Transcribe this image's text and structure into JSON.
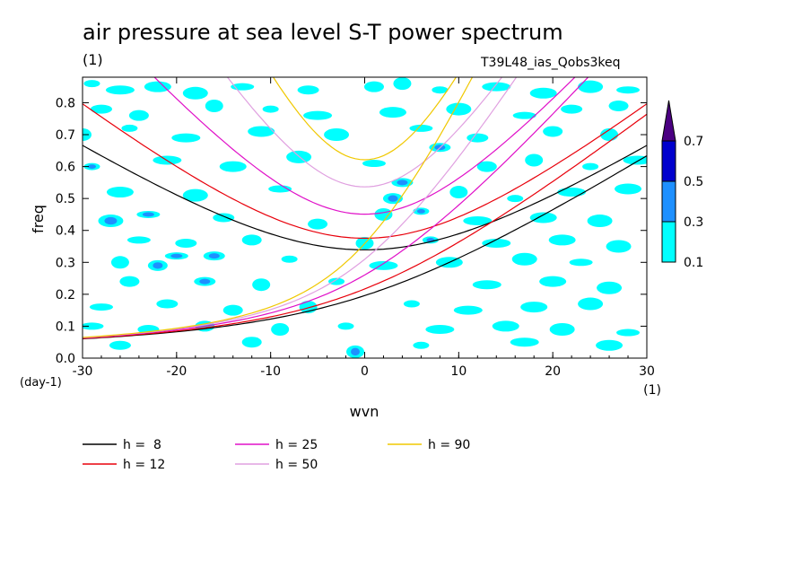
{
  "chart_data": {
    "type": "heatmap",
    "title": "air pressure at sea level S-T power spectrum",
    "title_units": "(1)",
    "subtitle": "T39L48_ias_Qobs3keq",
    "xlabel": "wvn",
    "xunits": "(1)",
    "ylabel": "freq",
    "yunits": "(day-1)",
    "xlim": [
      -30,
      30
    ],
    "ylim": [
      0.0,
      0.88
    ],
    "xticks": [
      -30,
      -20,
      -10,
      0,
      10,
      20,
      30
    ],
    "xtick_labels": [
      "-30",
      "-20",
      "-10",
      "0",
      "10",
      "20",
      "30"
    ],
    "yticks": [
      0.0,
      0.1,
      0.2,
      0.3,
      0.4,
      0.5,
      0.6,
      0.7,
      0.8
    ],
    "ytick_labels": [
      "0.0",
      "0.1",
      "0.2",
      "0.3",
      "0.4",
      "0.5",
      "0.6",
      "0.7",
      "0.8"
    ],
    "colorbar": {
      "levels": [
        0.1,
        0.3,
        0.5,
        0.7
      ],
      "labels": [
        "0.1",
        "0.3",
        "0.5",
        "0.7"
      ],
      "colors": [
        "#00ffff",
        "#1e90ff",
        "#0000cd",
        "#4b0082"
      ],
      "extend": "max"
    },
    "dispersion_curves": [
      {
        "name": "h =  8",
        "h": 8,
        "color": "#000000"
      },
      {
        "name": "h = 12",
        "h": 12,
        "color": "#e8000b"
      },
      {
        "name": "h = 25",
        "h": 25,
        "color": "#e010c8"
      },
      {
        "name": "h = 50",
        "h": 50,
        "color": "#e0a0e0"
      },
      {
        "name": "h = 90",
        "h": 90,
        "color": "#f0c800"
      }
    ],
    "legend_placement": "bottom",
    "grid": false,
    "blobs": [
      {
        "x": -29,
        "y": 0.86,
        "v": 0.15
      },
      {
        "x": -26,
        "y": 0.84,
        "v": 0.2
      },
      {
        "x": -22,
        "y": 0.85,
        "v": 0.15
      },
      {
        "x": -18,
        "y": 0.83,
        "v": 0.2
      },
      {
        "x": -13,
        "y": 0.85,
        "v": 0.15
      },
      {
        "x": -6,
        "y": 0.84,
        "v": 0.2
      },
      {
        "x": 1,
        "y": 0.85,
        "v": 0.15
      },
      {
        "x": 4,
        "y": 0.86,
        "v": 0.2
      },
      {
        "x": 8,
        "y": 0.84,
        "v": 0.15
      },
      {
        "x": 14,
        "y": 0.85,
        "v": 0.2
      },
      {
        "x": 19,
        "y": 0.83,
        "v": 0.15
      },
      {
        "x": 24,
        "y": 0.85,
        "v": 0.2
      },
      {
        "x": 28,
        "y": 0.84,
        "v": 0.15
      },
      {
        "x": -28,
        "y": 0.78,
        "v": 0.2
      },
      {
        "x": -24,
        "y": 0.76,
        "v": 0.15
      },
      {
        "x": -16,
        "y": 0.79,
        "v": 0.2
      },
      {
        "x": -10,
        "y": 0.78,
        "v": 0.2
      },
      {
        "x": -5,
        "y": 0.76,
        "v": 0.15
      },
      {
        "x": 3,
        "y": 0.77,
        "v": 0.2
      },
      {
        "x": 10,
        "y": 0.78,
        "v": 0.15
      },
      {
        "x": 17,
        "y": 0.76,
        "v": 0.2
      },
      {
        "x": 22,
        "y": 0.78,
        "v": 0.15
      },
      {
        "x": 27,
        "y": 0.79,
        "v": 0.2
      },
      {
        "x": -30,
        "y": 0.7,
        "v": 0.2
      },
      {
        "x": -25,
        "y": 0.72,
        "v": 0.2
      },
      {
        "x": -19,
        "y": 0.69,
        "v": 0.15
      },
      {
        "x": -11,
        "y": 0.71,
        "v": 0.2
      },
      {
        "x": -3,
        "y": 0.7,
        "v": 0.15
      },
      {
        "x": 6,
        "y": 0.72,
        "v": 0.2
      },
      {
        "x": 12,
        "y": 0.69,
        "v": 0.15
      },
      {
        "x": 20,
        "y": 0.71,
        "v": 0.2
      },
      {
        "x": 26,
        "y": 0.7,
        "v": 0.15
      },
      {
        "x": -29,
        "y": 0.6,
        "v": 0.35
      },
      {
        "x": -21,
        "y": 0.62,
        "v": 0.2
      },
      {
        "x": -14,
        "y": 0.6,
        "v": 0.15
      },
      {
        "x": -7,
        "y": 0.63,
        "v": 0.2
      },
      {
        "x": 1,
        "y": 0.61,
        "v": 0.2
      },
      {
        "x": 8,
        "y": 0.66,
        "v": 0.35
      },
      {
        "x": 13,
        "y": 0.6,
        "v": 0.2
      },
      {
        "x": 18,
        "y": 0.62,
        "v": 0.15
      },
      {
        "x": 24,
        "y": 0.6,
        "v": 0.2
      },
      {
        "x": 29,
        "y": 0.62,
        "v": 0.15
      },
      {
        "x": -26,
        "y": 0.52,
        "v": 0.2
      },
      {
        "x": -18,
        "y": 0.51,
        "v": 0.15
      },
      {
        "x": -9,
        "y": 0.53,
        "v": 0.2
      },
      {
        "x": 4,
        "y": 0.55,
        "v": 0.35
      },
      {
        "x": 3,
        "y": 0.5,
        "v": 0.4
      },
      {
        "x": 10,
        "y": 0.52,
        "v": 0.2
      },
      {
        "x": 16,
        "y": 0.5,
        "v": 0.15
      },
      {
        "x": 22,
        "y": 0.52,
        "v": 0.2
      },
      {
        "x": 28,
        "y": 0.53,
        "v": 0.15
      },
      {
        "x": -27,
        "y": 0.43,
        "v": 0.45
      },
      {
        "x": -23,
        "y": 0.45,
        "v": 0.3
      },
      {
        "x": -15,
        "y": 0.44,
        "v": 0.2
      },
      {
        "x": -5,
        "y": 0.42,
        "v": 0.15
      },
      {
        "x": 2,
        "y": 0.45,
        "v": 0.2
      },
      {
        "x": 6,
        "y": 0.46,
        "v": 0.4
      },
      {
        "x": 12,
        "y": 0.43,
        "v": 0.2
      },
      {
        "x": 19,
        "y": 0.44,
        "v": 0.15
      },
      {
        "x": 25,
        "y": 0.43,
        "v": 0.2
      },
      {
        "x": -24,
        "y": 0.37,
        "v": 0.2
      },
      {
        "x": -19,
        "y": 0.36,
        "v": 0.15
      },
      {
        "x": -12,
        "y": 0.37,
        "v": 0.2
      },
      {
        "x": 0,
        "y": 0.36,
        "v": 0.2
      },
      {
        "x": 7,
        "y": 0.37,
        "v": 0.35
      },
      {
        "x": 14,
        "y": 0.36,
        "v": 0.2
      },
      {
        "x": 21,
        "y": 0.37,
        "v": 0.15
      },
      {
        "x": 27,
        "y": 0.35,
        "v": 0.2
      },
      {
        "x": -20,
        "y": 0.32,
        "v": 0.4
      },
      {
        "x": -16,
        "y": 0.32,
        "v": 0.45
      },
      {
        "x": -22,
        "y": 0.29,
        "v": 0.35
      },
      {
        "x": -26,
        "y": 0.3,
        "v": 0.2
      },
      {
        "x": -8,
        "y": 0.31,
        "v": 0.15
      },
      {
        "x": 2,
        "y": 0.29,
        "v": 0.2
      },
      {
        "x": 9,
        "y": 0.3,
        "v": 0.2
      },
      {
        "x": 17,
        "y": 0.31,
        "v": 0.15
      },
      {
        "x": 23,
        "y": 0.3,
        "v": 0.2
      },
      {
        "x": -17,
        "y": 0.24,
        "v": 0.35
      },
      {
        "x": -25,
        "y": 0.24,
        "v": 0.2
      },
      {
        "x": -11,
        "y": 0.23,
        "v": 0.15
      },
      {
        "x": -3,
        "y": 0.24,
        "v": 0.2
      },
      {
        "x": 13,
        "y": 0.23,
        "v": 0.15
      },
      {
        "x": 20,
        "y": 0.24,
        "v": 0.2
      },
      {
        "x": 26,
        "y": 0.22,
        "v": 0.15
      },
      {
        "x": -28,
        "y": 0.16,
        "v": 0.2
      },
      {
        "x": -21,
        "y": 0.17,
        "v": 0.15
      },
      {
        "x": -14,
        "y": 0.15,
        "v": 0.2
      },
      {
        "x": -6,
        "y": 0.16,
        "v": 0.15
      },
      {
        "x": 5,
        "y": 0.17,
        "v": 0.2
      },
      {
        "x": 11,
        "y": 0.15,
        "v": 0.15
      },
      {
        "x": 18,
        "y": 0.16,
        "v": 0.2
      },
      {
        "x": 24,
        "y": 0.17,
        "v": 0.15
      },
      {
        "x": -29,
        "y": 0.1,
        "v": 0.2
      },
      {
        "x": -23,
        "y": 0.09,
        "v": 0.2
      },
      {
        "x": -17,
        "y": 0.1,
        "v": 0.15
      },
      {
        "x": -9,
        "y": 0.09,
        "v": 0.2
      },
      {
        "x": -2,
        "y": 0.1,
        "v": 0.15
      },
      {
        "x": 8,
        "y": 0.09,
        "v": 0.2
      },
      {
        "x": 15,
        "y": 0.1,
        "v": 0.15
      },
      {
        "x": 21,
        "y": 0.09,
        "v": 0.2
      },
      {
        "x": 28,
        "y": 0.08,
        "v": 0.2
      },
      {
        "x": -26,
        "y": 0.04,
        "v": 0.2
      },
      {
        "x": -12,
        "y": 0.05,
        "v": 0.15
      },
      {
        "x": -1,
        "y": 0.02,
        "v": 0.35
      },
      {
        "x": 6,
        "y": 0.04,
        "v": 0.15
      },
      {
        "x": 17,
        "y": 0.05,
        "v": 0.2
      },
      {
        "x": 26,
        "y": 0.04,
        "v": 0.15
      }
    ]
  }
}
